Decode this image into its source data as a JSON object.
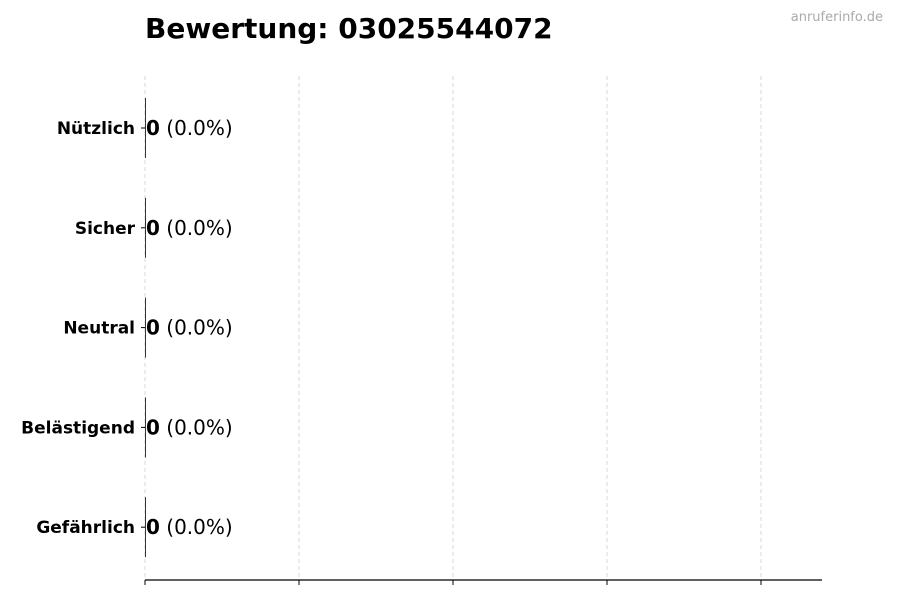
{
  "watermark": "anruferinfo.de",
  "chart_data": {
    "type": "bar",
    "orientation": "horizontal",
    "title": "Bewertung: 03025544072",
    "categories": [
      "Nützlich",
      "Sicher",
      "Neutral",
      "Belästigend",
      "Gefährlich"
    ],
    "values": [
      0,
      0,
      0,
      0,
      0
    ],
    "data_labels": [
      {
        "count": "0",
        "percent": "(0.0%)"
      },
      {
        "count": "0",
        "percent": "(0.0%)"
      },
      {
        "count": "0",
        "percent": "(0.0%)"
      },
      {
        "count": "0",
        "percent": "(0.0%)"
      },
      {
        "count": "0",
        "percent": "(0.0%)"
      }
    ],
    "xlabel": "",
    "ylabel": "",
    "grid": "vertical dashed",
    "bar_color": "#333333"
  }
}
